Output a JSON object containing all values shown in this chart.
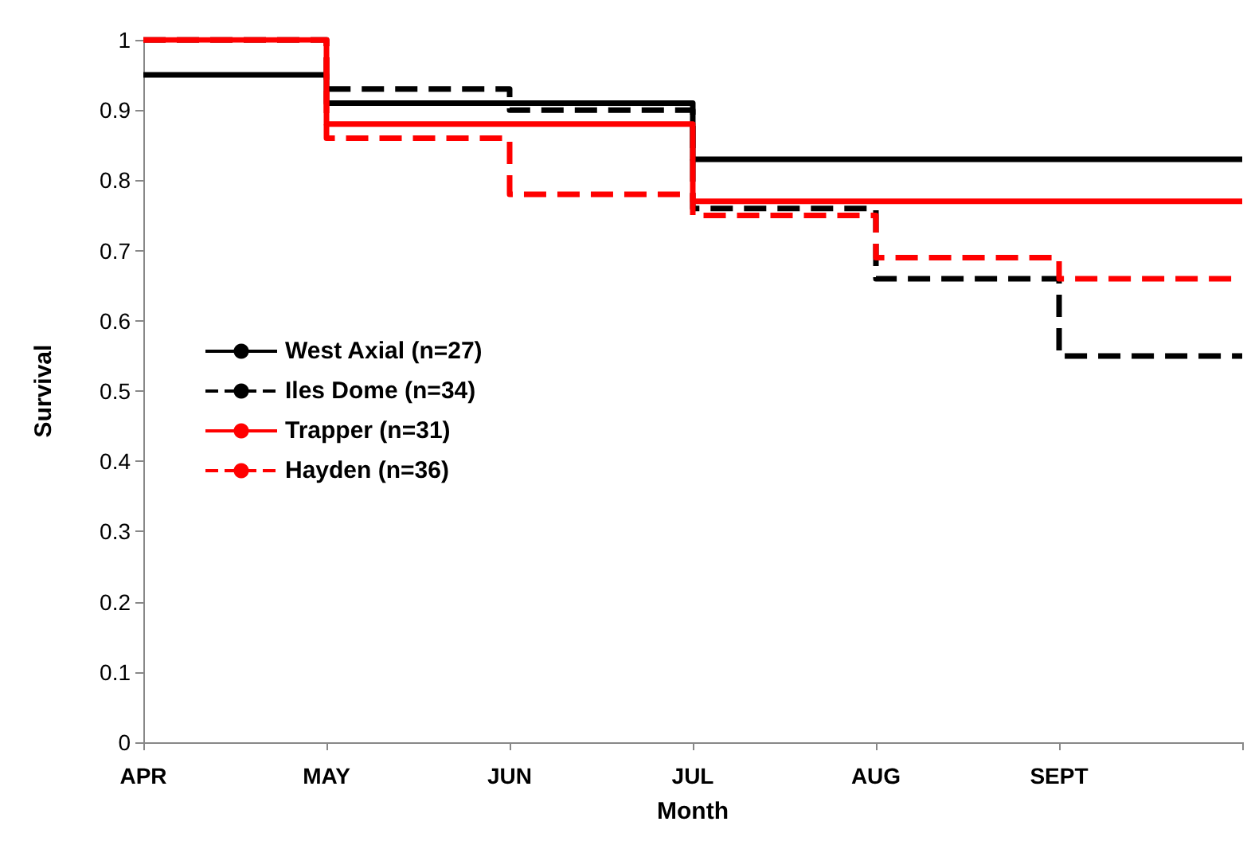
{
  "chart_data": {
    "type": "step",
    "xlabel": "Month",
    "ylabel": "Survival",
    "categories": [
      "APR",
      "MAY",
      "JUN",
      "JUL",
      "AUG",
      "SEPT",
      null
    ],
    "series": [
      {
        "name": "West Axial (n=27)",
        "color": "#000000",
        "line_style": "solid",
        "values": [
          0.95,
          0.91,
          0.91,
          0.83,
          0.83,
          0.83,
          0.83
        ]
      },
      {
        "name": "Iles Dome (n=34)",
        "color": "#000000",
        "line_style": "dashed",
        "values": [
          1,
          0.93,
          0.9,
          0.76,
          0.66,
          0.55,
          0.55
        ]
      },
      {
        "name": "Trapper (n=31)",
        "color": "#ff0000",
        "line_style": "solid",
        "values": [
          1,
          0.88,
          0.88,
          0.77,
          0.77,
          0.77,
          0.77
        ]
      },
      {
        "name": "Hayden (n=36)",
        "color": "#ff0000",
        "line_style": "dashed",
        "values": [
          1,
          0.86,
          0.78,
          0.75,
          0.69,
          0.66,
          0.66
        ]
      }
    ],
    "ylim": [
      0,
      1
    ],
    "yticks": [
      0,
      0.1,
      0.2,
      0.3,
      0.4,
      0.5,
      0.6,
      0.7,
      0.8,
      0.9,
      1
    ],
    "grid": false,
    "legend": "left",
    "marker": "none"
  }
}
